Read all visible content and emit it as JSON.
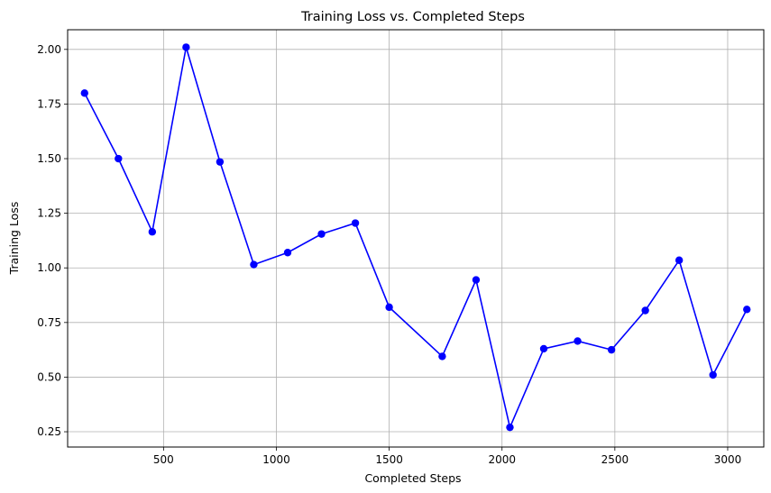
{
  "chart_data": {
    "type": "line",
    "title": "Training Loss vs. Completed Steps",
    "xlabel": "Completed Steps",
    "ylabel": "Training Loss",
    "xlim": [
      75,
      3160
    ],
    "ylim": [
      0.18,
      2.09
    ],
    "xticks": [
      500,
      1000,
      1500,
      2000,
      2500,
      3000
    ],
    "yticks": [
      0.25,
      0.5,
      0.75,
      1.0,
      1.25,
      1.5,
      1.75,
      2.0
    ],
    "grid": true,
    "line_color": "#0000ff",
    "marker": "circle",
    "x": [
      150,
      300,
      450,
      600,
      750,
      900,
      1050,
      1200,
      1350,
      1500,
      1735,
      1885,
      2035,
      2185,
      2335,
      2485,
      2635,
      2785,
      2935,
      3085
    ],
    "values": [
      1.8,
      1.5,
      1.165,
      2.01,
      1.485,
      1.015,
      1.07,
      1.155,
      1.205,
      0.82,
      0.595,
      0.945,
      0.27,
      0.63,
      0.665,
      0.625,
      0.805,
      1.035,
      0.51,
      0.81
    ]
  }
}
